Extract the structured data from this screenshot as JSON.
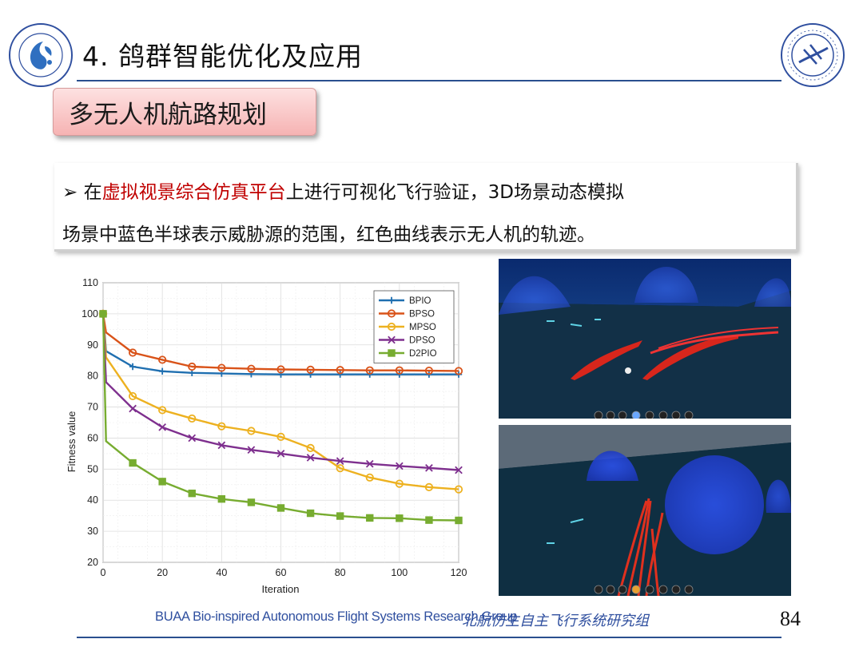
{
  "title": "4. 鸽群智能优化及应用",
  "subtitle": "多无人机航路规划",
  "bullet": {
    "marker": "➢",
    "line1_pre": " 在",
    "line1_highlight": "虚拟视景综合仿真平台",
    "line1_post": "上进行可视化飞行验证，3D场景动态模拟",
    "line2": "场景中蓝色半球表示威胁源的范围，红色曲线表示无人机的轨迹。"
  },
  "footer": {
    "english": "BUAA Bio-inspired Autonomous Flight Systems Research Group",
    "chinese": "北航仿生自主飞行系统研究组",
    "page_number": "84"
  },
  "colors": {
    "title_rule": "#2a4f8f",
    "highlight": "#c00000",
    "footer_text": "#2f4f9f"
  },
  "icons": {
    "logo_left": "research-group-logo-icon",
    "logo_right": "university-seal-icon"
  },
  "chart_data": {
    "type": "line",
    "xlabel": "Iteration",
    "ylabel": "Fitness value",
    "xlim": [
      0,
      120
    ],
    "ylim": [
      20,
      110
    ],
    "xticks": [
      0,
      20,
      40,
      60,
      80,
      100,
      120
    ],
    "yticks": [
      20,
      30,
      40,
      50,
      60,
      70,
      80,
      90,
      100,
      110
    ],
    "grid": true,
    "legend_position": "top-right",
    "x": [
      0,
      1,
      10,
      20,
      30,
      40,
      50,
      60,
      70,
      80,
      90,
      100,
      110,
      120
    ],
    "series": [
      {
        "name": "BPIO",
        "color": "#1f6fb0",
        "marker": "plus",
        "values": [
          100,
          88,
          83,
          81.5,
          81,
          80.8,
          80.6,
          80.5,
          80.5,
          80.5,
          80.5,
          80.5,
          80.5,
          80.5
        ]
      },
      {
        "name": "BPSO",
        "color": "#d95319",
        "marker": "circle",
        "values": [
          100,
          94,
          87.5,
          85.2,
          83,
          82.6,
          82.3,
          82.1,
          82,
          81.9,
          81.8,
          81.8,
          81.7,
          81.6
        ]
      },
      {
        "name": "MPSO",
        "color": "#edb120",
        "marker": "circle",
        "values": [
          100,
          86,
          73.5,
          69,
          66.3,
          63.8,
          62.3,
          60.4,
          56.8,
          50.3,
          47.3,
          45.3,
          44.2,
          43.5
        ]
      },
      {
        "name": "DPSO",
        "color": "#7e2f8e",
        "marker": "cross",
        "values": [
          100,
          78,
          69.5,
          63.5,
          60,
          57.7,
          56.2,
          55,
          53.7,
          52.6,
          51.7,
          51,
          50.4,
          49.7
        ]
      },
      {
        "name": "D2PIO",
        "color": "#77ac30",
        "marker": "square",
        "values": [
          100,
          59,
          52,
          46,
          42.2,
          40.4,
          39.3,
          37.5,
          35.8,
          34.9,
          34.3,
          34.2,
          33.6,
          33.5
        ]
      }
    ]
  }
}
